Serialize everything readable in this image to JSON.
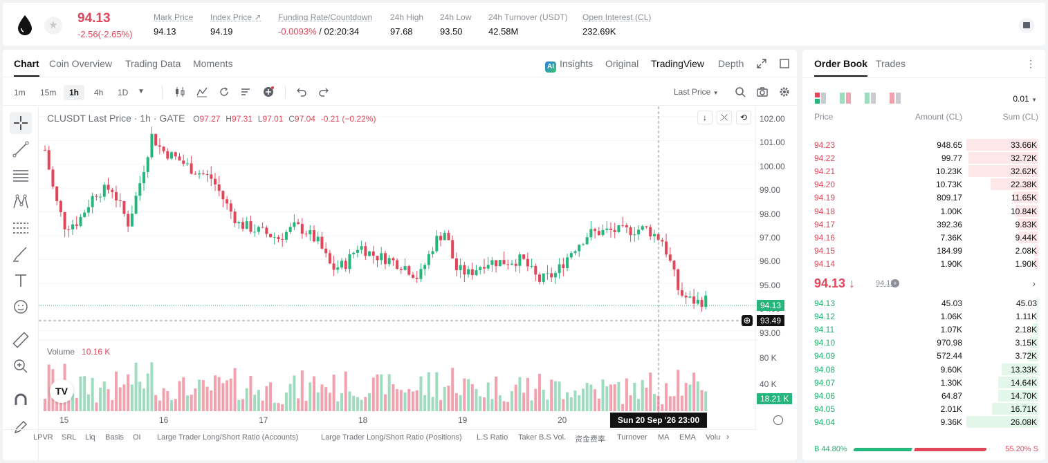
{
  "ticker": {
    "last_price": "94.13",
    "change": "-2.56(-2.65%)",
    "stats": [
      {
        "label": "Mark Price",
        "value": "94.13"
      },
      {
        "label": "Index Price ↗",
        "value": "94.19"
      },
      {
        "label": "Funding Rate/Countdown",
        "value_red": "-0.0093%",
        "value": " / 02:20:34"
      },
      {
        "label": "24h High",
        "value": "97.68"
      },
      {
        "label": "24h Low",
        "value": "93.50"
      },
      {
        "label": "24h Turnover (USDT)",
        "value": "42.58M"
      },
      {
        "label": "Open Interest (CL)",
        "value": "232.69K"
      }
    ]
  },
  "chart_tabs": [
    "Chart",
    "Coin Overview",
    "Trading Data",
    "Moments"
  ],
  "view_tabs": {
    "insights": "Insights",
    "original": "Original",
    "tradingview": "TradingView",
    "depth": "Depth",
    "ai_badge": "AI"
  },
  "timeframes": [
    "1m",
    "15m",
    "1h",
    "4h",
    "1D"
  ],
  "selected_timeframe": "1h",
  "price_source": "Last Price",
  "legend": {
    "symbol": "CLUSDT Last Price · 1h · GATE",
    "o_label": "O",
    "o": "97.27",
    "h_label": "H",
    "h": "97.31",
    "l_label": "L",
    "l": "97.01",
    "c_label": "C",
    "c": "97.04",
    "chg": "-0.21 (−0.22%)"
  },
  "volume_legend": {
    "label": "Volume",
    "value": "10.16 K"
  },
  "y_axis_ticks": [
    "102.00",
    "101.00",
    "100.00",
    "99.00",
    "98.00",
    "97.00",
    "96.00",
    "95.00",
    "94.00",
    "93.00"
  ],
  "volume_axis_ticks": [
    "80 K",
    "40 K"
  ],
  "x_axis_ticks": [
    "15",
    "16",
    "17",
    "18",
    "19",
    "20"
  ],
  "price_tags": {
    "last": "94.13",
    "crosshair": "93.49",
    "volume": "18.21 K"
  },
  "crosshair_date": "Sun 20 Sep '26   23:00",
  "indicator_tabs": [
    "LPVR",
    "SRL",
    "Liq",
    "Basis",
    "OI",
    "Large Trader Long/Short Ratio (Accounts)",
    "Large Trader Long/Short Ratio (Positions)",
    "L.S Ratio",
    "Taker B.S Vol.",
    "资金费率",
    "Turnover",
    "MA",
    "EMA",
    "Volu"
  ],
  "colors": {
    "up": "#26b57a",
    "down": "#e0475a",
    "up_vol": "#9fdcbf",
    "down_vol": "#f1a2ad"
  },
  "order_book": {
    "tabs": [
      "Order Book",
      "Trades"
    ],
    "precision": "0.01",
    "headers": {
      "price": "Price",
      "amount": "Amount (CL)",
      "sum": "Sum (CL)"
    },
    "asks": [
      {
        "price": "94.23",
        "amount": "948.65",
        "sum": "33.66K",
        "depth": 1.0
      },
      {
        "price": "94.22",
        "amount": "99.77",
        "sum": "32.72K",
        "depth": 0.97
      },
      {
        "price": "94.21",
        "amount": "10.23K",
        "sum": "32.62K",
        "depth": 0.97
      },
      {
        "price": "94.20",
        "amount": "10.73K",
        "sum": "22.38K",
        "depth": 0.66
      },
      {
        "price": "94.19",
        "amount": "809.17",
        "sum": "11.65K",
        "depth": 0.35
      },
      {
        "price": "94.18",
        "amount": "1.00K",
        "sum": "10.84K",
        "depth": 0.32
      },
      {
        "price": "94.17",
        "amount": "392.36",
        "sum": "9.83K",
        "depth": 0.29
      },
      {
        "price": "94.16",
        "amount": "7.36K",
        "sum": "9.44K",
        "depth": 0.28
      },
      {
        "price": "94.15",
        "amount": "184.99",
        "sum": "2.08K",
        "depth": 0.06
      },
      {
        "price": "94.14",
        "amount": "1.90K",
        "sum": "1.90K",
        "depth": 0.06
      }
    ],
    "mid_price": "94.13 ↓",
    "mark_price": "94.13",
    "bids": [
      {
        "price": "94.13",
        "amount": "45.03",
        "sum": "45.03",
        "depth": 0.002
      },
      {
        "price": "94.12",
        "amount": "1.06K",
        "sum": "1.11K",
        "depth": 0.04
      },
      {
        "price": "94.11",
        "amount": "1.07K",
        "sum": "2.18K",
        "depth": 0.08
      },
      {
        "price": "94.10",
        "amount": "970.98",
        "sum": "3.15K",
        "depth": 0.12
      },
      {
        "price": "94.09",
        "amount": "572.44",
        "sum": "3.72K",
        "depth": 0.14
      },
      {
        "price": "94.08",
        "amount": "9.60K",
        "sum": "13.33K",
        "depth": 0.51
      },
      {
        "price": "94.07",
        "amount": "1.30K",
        "sum": "14.64K",
        "depth": 0.56
      },
      {
        "price": "94.06",
        "amount": "64.87",
        "sum": "14.70K",
        "depth": 0.56
      },
      {
        "price": "94.05",
        "amount": "2.01K",
        "sum": "16.71K",
        "depth": 0.64
      },
      {
        "price": "94.04",
        "amount": "9.36K",
        "sum": "26.08K",
        "depth": 1.0
      }
    ],
    "buy_ratio": "B 44.80%",
    "sell_ratio": "55.20% S",
    "buy_fraction": 0.448
  }
}
